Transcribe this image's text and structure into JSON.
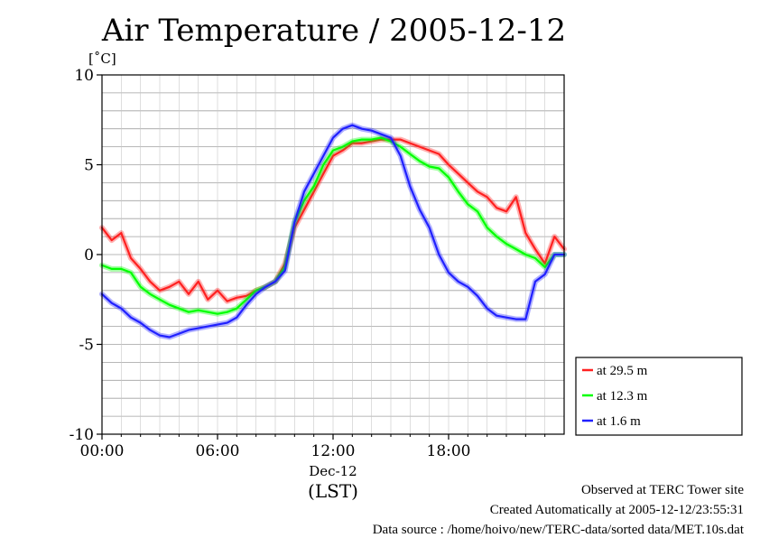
{
  "chart_data": {
    "type": "line",
    "title": "Air Temperature / 2005-12-12",
    "ylabel": "[˚C]",
    "ylim": [
      -10,
      10
    ],
    "yticks": [
      -10,
      -5,
      0,
      5,
      10
    ],
    "xlim": [
      0,
      24
    ],
    "xticks": [
      {
        "x": 0,
        "label": "00:00"
      },
      {
        "x": 6,
        "label": "06:00"
      },
      {
        "x": 12,
        "label": "12:00"
      },
      {
        "x": 18,
        "label": "18:00"
      }
    ],
    "x_date_label": "Dec-12",
    "xunit": "(LST)",
    "grid": true,
    "legend_position": "right-bottom",
    "series": [
      {
        "name": "at 29.5 m",
        "color": "#ff2020",
        "x": [
          0,
          0.5,
          1,
          1.5,
          2,
          2.5,
          3,
          3.5,
          4,
          4.5,
          5,
          5.5,
          6,
          6.5,
          7,
          7.5,
          8,
          8.5,
          9,
          9.5,
          10,
          10.5,
          11,
          11.5,
          12,
          12.5,
          13,
          13.5,
          14,
          14.5,
          15,
          15.5,
          16,
          16.5,
          17,
          17.5,
          18,
          18.5,
          19,
          19.5,
          20,
          20.5,
          21,
          21.5,
          22,
          22.5,
          23,
          23.5,
          24
        ],
        "values": [
          1.5,
          0.8,
          1.2,
          -0.2,
          -0.8,
          -1.5,
          -2.0,
          -1.8,
          -1.5,
          -2.2,
          -1.5,
          -2.5,
          -2.0,
          -2.6,
          -2.4,
          -2.3,
          -2.0,
          -1.8,
          -1.5,
          -0.5,
          1.5,
          2.5,
          3.5,
          4.5,
          5.5,
          5.8,
          6.2,
          6.2,
          6.3,
          6.4,
          6.4,
          6.4,
          6.2,
          6.0,
          5.8,
          5.6,
          5.0,
          4.5,
          4.0,
          3.5,
          3.2,
          2.6,
          2.4,
          3.2,
          1.2,
          0.3,
          -0.5,
          1.0,
          0.3
        ]
      },
      {
        "name": "at 12.3 m",
        "color": "#00ff00",
        "x": [
          0,
          0.5,
          1,
          1.5,
          2,
          2.5,
          3,
          3.5,
          4,
          4.5,
          5,
          5.5,
          6,
          6.5,
          7,
          7.5,
          8,
          8.5,
          9,
          9.5,
          10,
          10.5,
          11,
          11.5,
          12,
          12.5,
          13,
          13.5,
          14,
          14.5,
          15,
          15.5,
          16,
          16.5,
          17,
          17.5,
          18,
          18.5,
          19,
          19.5,
          20,
          20.5,
          21,
          21.5,
          22,
          22.5,
          23,
          23.5,
          24
        ],
        "values": [
          -0.6,
          -0.8,
          -0.8,
          -1.0,
          -1.8,
          -2.2,
          -2.5,
          -2.8,
          -3.0,
          -3.2,
          -3.1,
          -3.2,
          -3.3,
          -3.2,
          -3.0,
          -2.5,
          -2.0,
          -1.8,
          -1.5,
          -0.7,
          1.8,
          3.0,
          3.8,
          5.0,
          5.8,
          6.0,
          6.3,
          6.4,
          6.4,
          6.5,
          6.3,
          6.0,
          5.6,
          5.2,
          4.9,
          4.8,
          4.3,
          3.5,
          2.8,
          2.4,
          1.5,
          1.0,
          0.6,
          0.3,
          0.0,
          -0.2,
          -0.7,
          0.0,
          0.0
        ]
      },
      {
        "name": "at 1.6 m",
        "color": "#2020ff",
        "x": [
          0,
          0.5,
          1,
          1.5,
          2,
          2.5,
          3,
          3.5,
          4,
          4.5,
          5,
          5.5,
          6,
          6.5,
          7,
          7.5,
          8,
          8.5,
          9,
          9.5,
          10,
          10.5,
          11,
          11.5,
          12,
          12.5,
          13,
          13.5,
          14,
          14.5,
          15,
          15.5,
          16,
          16.5,
          17,
          17.5,
          18,
          18.5,
          19,
          19.5,
          20,
          20.5,
          21,
          21.5,
          22,
          22.5,
          23,
          23.5,
          24
        ],
        "values": [
          -2.2,
          -2.7,
          -3.0,
          -3.5,
          -3.8,
          -4.2,
          -4.5,
          -4.6,
          -4.4,
          -4.2,
          -4.1,
          -4.0,
          -3.9,
          -3.8,
          -3.5,
          -2.8,
          -2.2,
          -1.8,
          -1.5,
          -0.9,
          1.8,
          3.5,
          4.5,
          5.5,
          6.5,
          7.0,
          7.2,
          7.0,
          6.9,
          6.7,
          6.5,
          5.5,
          3.8,
          2.5,
          1.5,
          0.0,
          -1.0,
          -1.5,
          -1.8,
          -2.3,
          -3.0,
          -3.4,
          -3.5,
          -3.6,
          -3.6,
          -1.5,
          -1.1,
          0.0,
          0.0
        ]
      }
    ]
  },
  "footer": {
    "line1": "Observed at TERC Tower site",
    "line2": "Created Automatically at 2005-12-12/23:55:31",
    "line3": "Data source : /home/hoivo/new/TERC-data/sorted  data/MET.10s.dat"
  }
}
